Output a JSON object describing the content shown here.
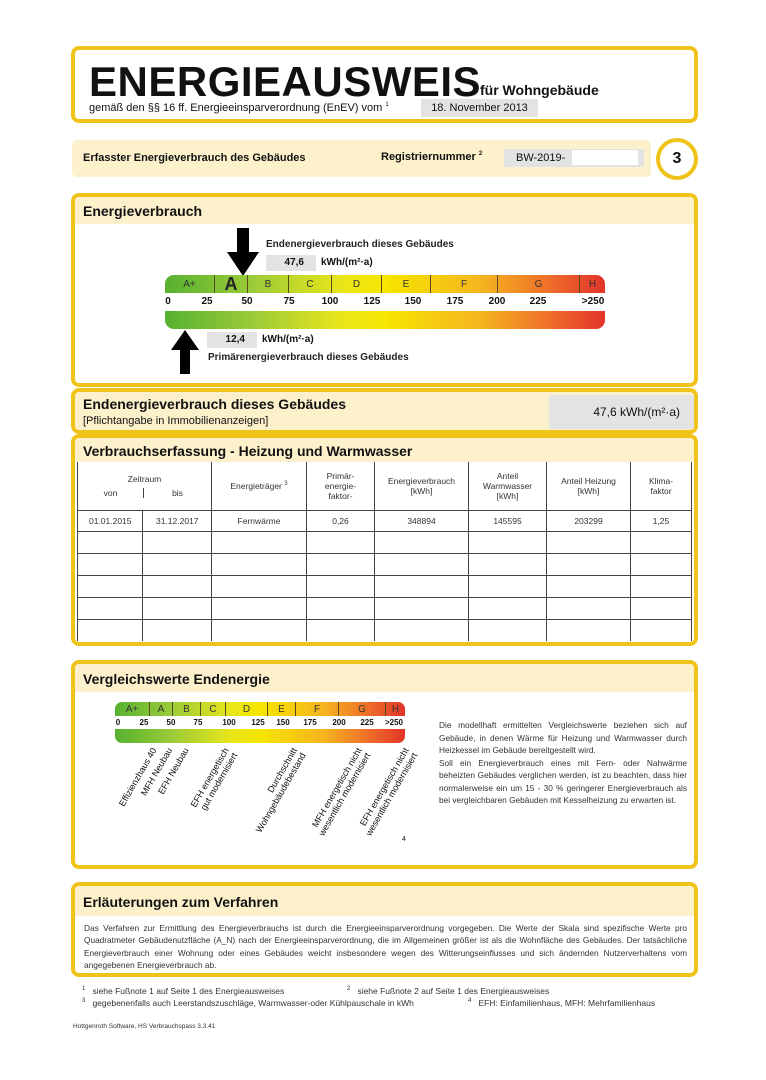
{
  "header": {
    "title": "ENERGIEAUSWEIS",
    "title_suffix": "für Wohngebäude",
    "subtitle": "gemäß den §§ 16 ff. Energieeinsparverordnung (EnEV) vom",
    "subtitle_sup": "1",
    "date": "18. November 2013"
  },
  "info_bar": {
    "label": "Erfasster Energieverbrauch des Gebäudes",
    "reg_label": "Registriernummer",
    "reg_sup": "2",
    "reg_value": "BW-2019-",
    "page_number": "3"
  },
  "energieverbrauch": {
    "heading": "Energieverbrauch",
    "end_label": "Endenergieverbrauch dieses Gebäudes",
    "end_value": "47,6",
    "end_unit": "kWh/(m²·a)",
    "primary_value": "12,4",
    "primary_unit": "kWh/(m²·a)",
    "primary_label": "Primärenergieverbrauch dieses Gebäudes",
    "classes": [
      "A+",
      "A",
      "B",
      "C",
      "D",
      "E",
      "F",
      "G",
      "H"
    ],
    "highlighted_class": "A",
    "ticks": [
      "0",
      "25",
      "50",
      "75",
      "100",
      "125",
      "150",
      "175",
      "200",
      "225",
      ">250"
    ]
  },
  "end_summary": {
    "title": "Endenergieverbrauch dieses Gebäudes",
    "note": "[Pflichtangabe in Immobilienanzeigen]",
    "value": "47,6 kWh/(m²·a)"
  },
  "verbrauch": {
    "heading": "Verbrauchserfassung - Heizung und Warmwasser",
    "headers": {
      "zeitraum": "Zeitraum",
      "von": "von",
      "bis": "bis",
      "traeger": "Energieträger",
      "traeger_sup": "3",
      "pef": "Primär-\nenergie-\nfaktor-",
      "ev": "Energieverbrauch\n[kWh]",
      "ww": "Anteil\nWarmwasser\n[kWh]",
      "hz": "Anteil Heizung\n[kWh]",
      "klima": "Klima-\nfaktor"
    },
    "rows": [
      [
        "01.01.2015",
        "31.12.2017",
        "Fernwärme",
        "0,26",
        "348894",
        "145595",
        "203299",
        "1,25"
      ]
    ]
  },
  "vergleich": {
    "heading": "Vergleichswerte Endenergie",
    "classes": [
      "A+",
      "A",
      "B",
      "C",
      "D",
      "E",
      "F",
      "G",
      "H"
    ],
    "ticks": [
      "0",
      "25",
      "50",
      "75",
      "100",
      "125",
      "150",
      "175",
      "200",
      "225",
      ">250"
    ],
    "labels": [
      "Effizienzhaus 40",
      "MFH Neubau",
      "EFH Neubau",
      "EFH energetisch\ngut modernisiert",
      "Durchschnitt\nWohngebäudebestand",
      "MFH energetisch nicht\nwesentlich modernisiert",
      "EFH energetisch nicht\nwesentlich modernisiert"
    ],
    "footnote_mark": "4",
    "text": "Die modellhaft ermittelten Vergleichswerte beziehen sich auf Gebäude, in denen Wärme für Heizung und Warmwasser durch Heizkessel im Gebäude bereitgestellt wird.",
    "text2": "Soll ein Energieverbrauch eines mit Fern- oder Nahwärme beheizten Gebäudes verglichen werden, ist zu beachten, dass hier normalerweise ein um 15 - 30 % geringerer Energieverbrauch als bei vergleichbaren Gebäuden mit Kesselheizung zu erwarten ist."
  },
  "erlaeuterung": {
    "heading": "Erläuterungen zum Verfahren",
    "text": "Das Verfahren zur Ermittlung des Energieverbrauchs ist durch die Energieeinsparverordnung vorgegeben. Die Werte der Skala sind spezifische Werte pro Quadratmeter Gebäudenutzfläche (A_N) nach der Energieeinsparverordnung, die im Allgemeinen größer ist als die Wohnfläche des Gebäudes. Der tatsächliche Energieverbrauch einer Wohnung oder eines Gebäudes weicht insbesondere wegen des Witterungseinflusses und sich ändernden Nutzerverhaltens vom angegebenen Energieverbrauch ab."
  },
  "footnotes": [
    {
      "n": "1",
      "t": "siehe Fußnote 1 auf Seite 1 des Energieausweises"
    },
    {
      "n": "2",
      "t": "siehe Fußnote 2 auf Seite 1 des Energieausweises"
    },
    {
      "n": "3",
      "t": "gegebenenfalls auch Leerstandszuschläge, Warmwasser-oder Kühlpauschale in kWh"
    },
    {
      "n": "4",
      "t": "EFH: Einfamilienhaus, MFH: Mehrfamilienhaus"
    }
  ],
  "footer": "Hottgenroth Software, HS Verbrauchspass 3.3.41",
  "colors": {
    "border": "#f0c31a",
    "band": "#fdf1cc"
  }
}
